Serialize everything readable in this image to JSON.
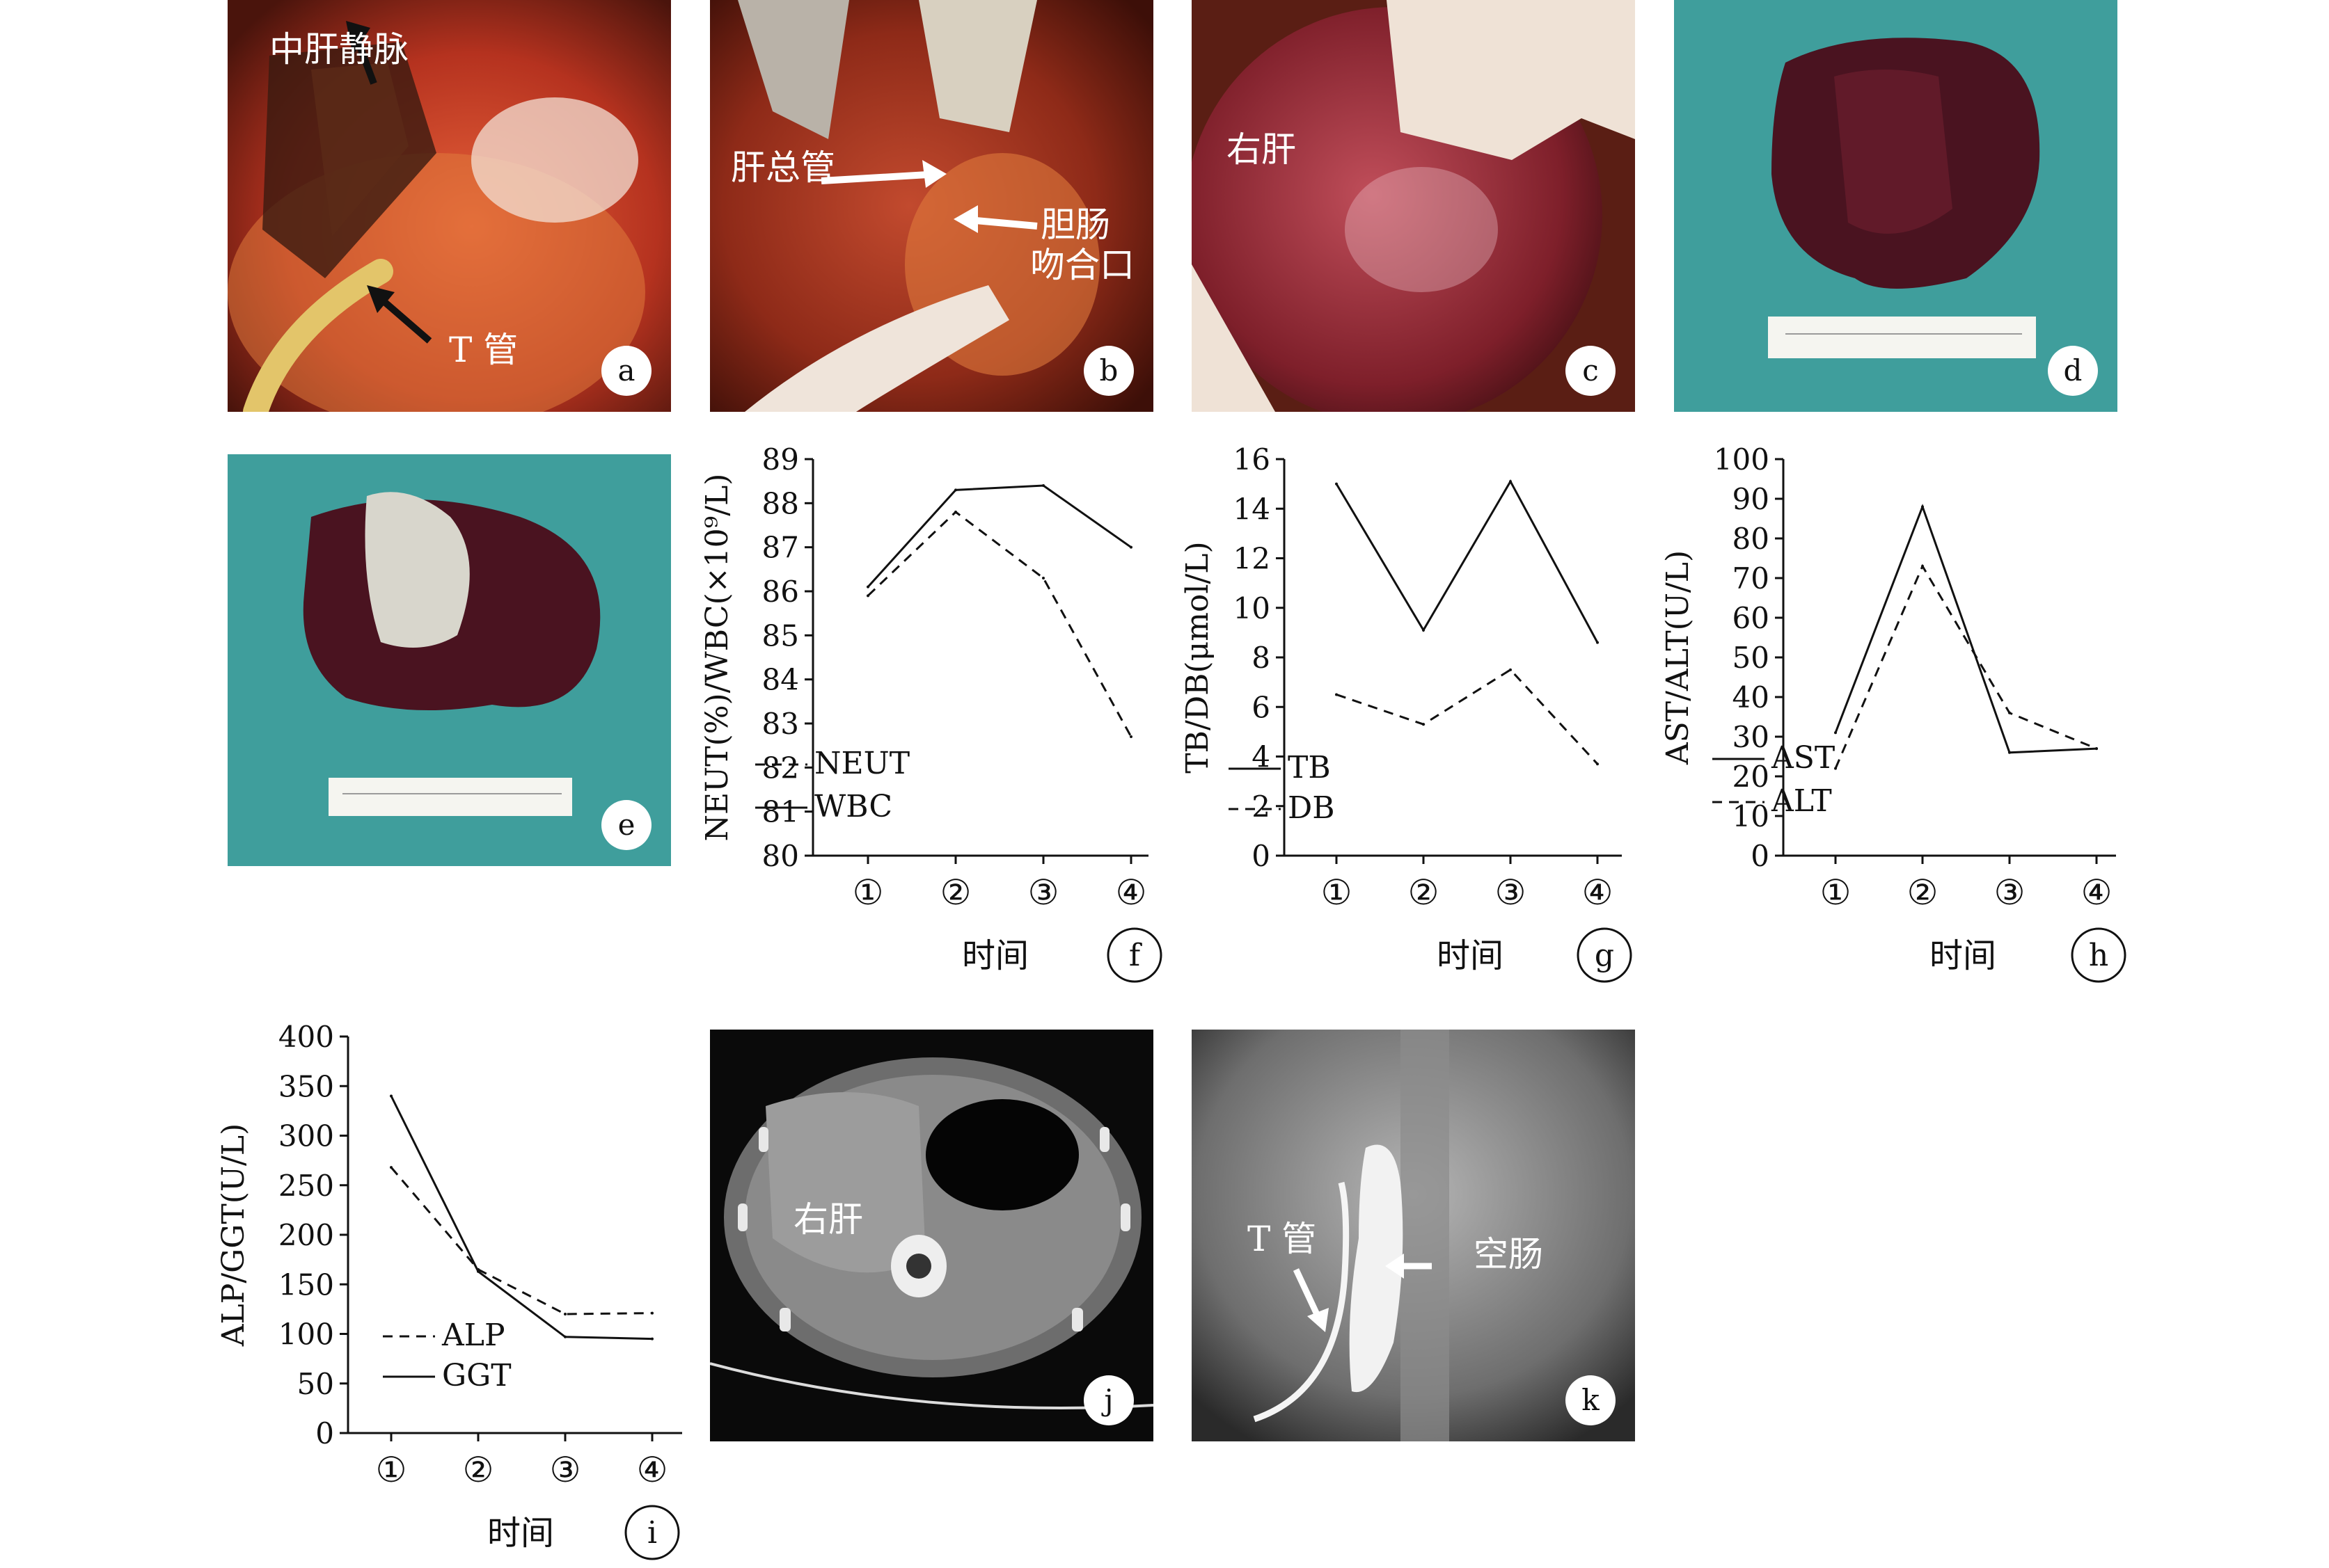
{
  "panels": {
    "a": {
      "letter": "a",
      "labels": [
        "中肝静脉",
        "T 管"
      ]
    },
    "b": {
      "letter": "b",
      "labels": [
        "肝总管",
        "胆肠",
        "吻合口"
      ]
    },
    "c": {
      "letter": "c",
      "labels": [
        "右肝"
      ]
    },
    "d": {
      "letter": "d"
    },
    "e": {
      "letter": "e"
    },
    "j": {
      "letter": "j",
      "labels": [
        "右肝"
      ]
    },
    "k": {
      "letter": "k",
      "labels": [
        "T 管",
        "空肠"
      ]
    }
  },
  "chart_data": [
    {
      "panel": "f",
      "type": "line",
      "ylabel": "NEUT(%)/WBC(×10⁹/L)",
      "xlabel": "时间",
      "categories": [
        "①",
        "②",
        "③",
        "④"
      ],
      "ylim": [
        80,
        89
      ],
      "yticks": [
        80,
        81,
        82,
        83,
        84,
        85,
        86,
        87,
        88,
        89
      ],
      "series": [
        {
          "name": "NEUT",
          "dash": true,
          "values": [
            85.9,
            87.8,
            86.3,
            82.7
          ]
        },
        {
          "name": "WBC",
          "dash": false,
          "values": [
            86.1,
            88.3,
            88.4,
            87.0
          ]
        }
      ],
      "legend": "bottom-left"
    },
    {
      "panel": "g",
      "type": "line",
      "ylabel": "TB/DB(μmol/L)",
      "xlabel": "时间",
      "categories": [
        "①",
        "②",
        "③",
        "④"
      ],
      "ylim": [
        0,
        16
      ],
      "yticks": [
        0,
        2,
        4,
        6,
        8,
        10,
        12,
        14,
        16
      ],
      "series": [
        {
          "name": "TB",
          "dash": false,
          "values": [
            15.0,
            9.1,
            15.1,
            8.6
          ]
        },
        {
          "name": "DB",
          "dash": true,
          "values": [
            6.5,
            5.3,
            7.5,
            3.7
          ]
        }
      ],
      "legend": "bottom-left"
    },
    {
      "panel": "h",
      "type": "line",
      "ylabel": "AST/ALT(U/L)",
      "xlabel": "时间",
      "categories": [
        "①",
        "②",
        "③",
        "④"
      ],
      "ylim": [
        0,
        100
      ],
      "yticks": [
        0,
        10,
        20,
        30,
        40,
        50,
        60,
        70,
        80,
        90,
        100
      ],
      "series": [
        {
          "name": "AST",
          "dash": false,
          "values": [
            31,
            88,
            26,
            27
          ]
        },
        {
          "name": "ALT",
          "dash": true,
          "values": [
            22,
            73,
            36,
            27
          ]
        }
      ],
      "legend": "bottom-left"
    },
    {
      "panel": "i",
      "type": "line",
      "ylabel": "ALP/GGT(U/L)",
      "xlabel": "时间",
      "categories": [
        "①",
        "②",
        "③",
        "④"
      ],
      "ylim": [
        0,
        400
      ],
      "yticks": [
        0,
        50,
        100,
        150,
        200,
        250,
        300,
        350,
        400
      ],
      "series": [
        {
          "name": "ALP",
          "dash": true,
          "values": [
            268,
            165,
            120,
            121
          ]
        },
        {
          "name": "GGT",
          "dash": false,
          "values": [
            340,
            163,
            97,
            95
          ]
        }
      ],
      "legend": "bottom-left"
    }
  ]
}
